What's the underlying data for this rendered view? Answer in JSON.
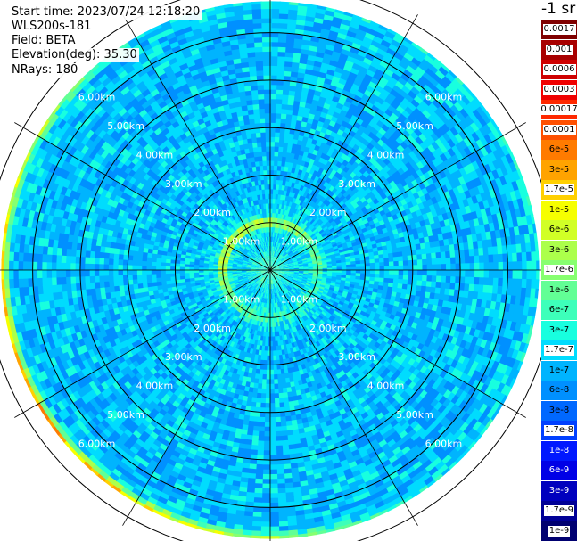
{
  "header": {
    "start_time": "Start time: 2023/07/24 12:18:20",
    "instrument": "WLS200s-181",
    "field": "Field: BETA",
    "elevation": "Elevation(deg): 35.30",
    "nrays": "NRays: 180"
  },
  "colorbar": {
    "unit": "-1 sr",
    "entries": [
      {
        "label": "0.0017",
        "color": "#800000",
        "label_bg": "#ffffff",
        "label_fg": "#000000"
      },
      {
        "label": "0.001",
        "color": "#a80000",
        "label_bg": "#ffffff",
        "label_fg": "#000000"
      },
      {
        "label": "0.0006",
        "color": "#cf0000",
        "label_bg": "#ffffff",
        "label_fg": "#000000"
      },
      {
        "label": "0.0003",
        "color": "#f00000",
        "label_bg": "#ffffff",
        "label_fg": "#000000"
      },
      {
        "label": "0.00017",
        "color": "#ff2800",
        "label_bg": "#ffffff",
        "label_fg": "#000000"
      },
      {
        "label": "0.0001",
        "color": "#ff5000",
        "label_bg": "#ffffff",
        "label_fg": "#000000"
      },
      {
        "label": "6e-5",
        "color": "#ff7b00",
        "label_bg": "#ff7b00",
        "label_fg": "#000000"
      },
      {
        "label": "3e-5",
        "color": "#ffa300",
        "label_bg": "#ffa300",
        "label_fg": "#000000"
      },
      {
        "label": "1.7e-5",
        "color": "#ffd000",
        "label_bg": "#ffffff",
        "label_fg": "#000000"
      },
      {
        "label": "1e-5",
        "color": "#f6ff00",
        "label_bg": "#f6ff00",
        "label_fg": "#000000"
      },
      {
        "label": "6e-6",
        "color": "#d1ff26",
        "label_bg": "#d1ff26",
        "label_fg": "#000000"
      },
      {
        "label": "3e-6",
        "color": "#acff4b",
        "label_bg": "#acff4b",
        "label_fg": "#000000"
      },
      {
        "label": "1.7e-6",
        "color": "#87ff70",
        "label_bg": "#ffffff",
        "label_fg": "#000000"
      },
      {
        "label": "1e-6",
        "color": "#62ff95",
        "label_bg": "#62ff95",
        "label_fg": "#000000"
      },
      {
        "label": "6e-7",
        "color": "#3dffba",
        "label_bg": "#3dffba",
        "label_fg": "#000000"
      },
      {
        "label": "3e-7",
        "color": "#18ffdf",
        "label_bg": "#18ffdf",
        "label_fg": "#000000"
      },
      {
        "label": "1.7e-7",
        "color": "#00dcfe",
        "label_bg": "#ffffff",
        "label_fg": "#000000"
      },
      {
        "label": "1e-7",
        "color": "#00b4fe",
        "label_bg": "#00b4fe",
        "label_fg": "#000000"
      },
      {
        "label": "6e-8",
        "color": "#0090ff",
        "label_bg": "#0090ff",
        "label_fg": "#000000"
      },
      {
        "label": "3e-8",
        "color": "#0068ff",
        "label_bg": "#0068ff",
        "label_fg": "#000000"
      },
      {
        "label": "1.7e-8",
        "color": "#0040ff",
        "label_bg": "#ffffff",
        "label_fg": "#000000"
      },
      {
        "label": "1e-8",
        "color": "#0018ff",
        "label_bg": "#0018ff",
        "label_fg": "#ffffff"
      },
      {
        "label": "6e-9",
        "color": "#0000e6",
        "label_bg": "#0000e6",
        "label_fg": "#ffffff"
      },
      {
        "label": "3e-9",
        "color": "#0000be",
        "label_bg": "#0000be",
        "label_fg": "#ffffff"
      },
      {
        "label": "1.7e-9",
        "color": "#000096",
        "label_bg": "#ffffff",
        "label_fg": "#000000"
      },
      {
        "label": "1e-9",
        "color": "#000070",
        "label_bg": "#ffffff",
        "label_fg": "#000000"
      }
    ]
  },
  "chart_data": {
    "type": "heatmap",
    "projection": "polar (plan position indicator)",
    "field": "BETA",
    "n_rays": 180,
    "range_rings_km": [
      1,
      2,
      3,
      4,
      5,
      6
    ],
    "ring_labels": [
      "1.00km",
      "2.00km",
      "3.00km",
      "4.00km",
      "5.00km",
      "6.00km"
    ],
    "max_range_km": 5.65,
    "radial_lines_deg": [
      0,
      30,
      60,
      90,
      120,
      150,
      180,
      210,
      240,
      270,
      300,
      330
    ],
    "color_scale": "log",
    "value_range": [
      1e-09,
      0.0017
    ],
    "typical_values": {
      "background": 1.7e-07,
      "ring_feature_radius_km": 1.0,
      "ring_feature_value": 6e-06,
      "outer_edge_value": 3e-05
    }
  }
}
